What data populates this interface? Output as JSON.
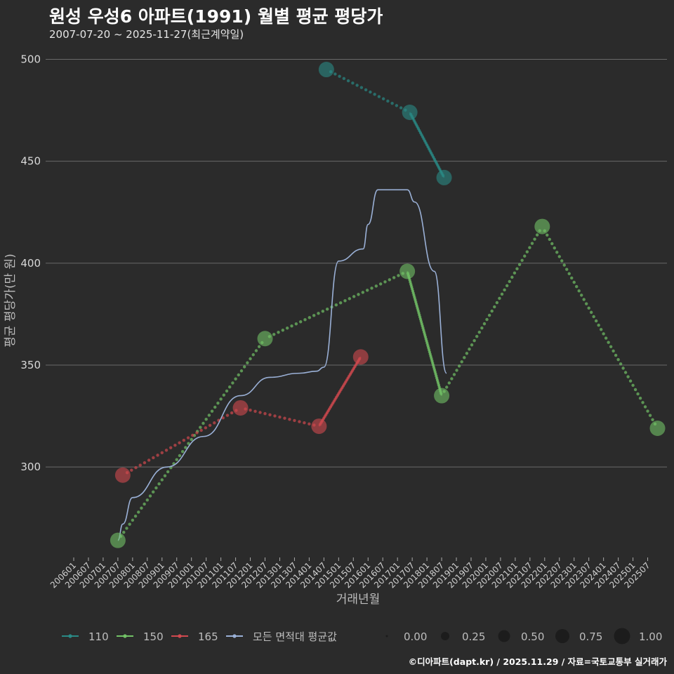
{
  "title": "원성 우성6 아파트(1991) 월별 평균 평당가",
  "subtitle": "2007-07-20 ~ 2025-11-27(최근계약일)",
  "credit": "©디아파트(dapt.kr) / 2025.11.29 / 자료=국토교통부 실거래가",
  "colors": {
    "background": "#2b2b2b",
    "grid": "#6a6a6a",
    "series_110": "#2a8a86",
    "series_150": "#72c266",
    "series_165": "#d0494f",
    "series_avg": "#9ab0d6"
  },
  "chart_data": {
    "type": "line",
    "xlabel": "거래년월",
    "ylabel": "평균 평당가(만 원)",
    "ylim": [
      257,
      505
    ],
    "yticks": [
      300,
      350,
      400,
      450,
      500
    ],
    "xlim": [
      "2006-01",
      "2025-12"
    ],
    "xticks": [
      "200601",
      "200607",
      "200701",
      "200707",
      "200801",
      "200807",
      "200901",
      "200907",
      "201001",
      "201007",
      "201101",
      "201107",
      "201201",
      "201207",
      "201301",
      "201307",
      "201401",
      "201407",
      "201501",
      "201507",
      "201601",
      "201607",
      "201701",
      "201707",
      "201801",
      "201807",
      "201901",
      "201907",
      "202001",
      "202007",
      "202101",
      "202107",
      "202201",
      "202207",
      "202301",
      "202307",
      "202401",
      "202407",
      "202501",
      "202507"
    ],
    "series": [
      {
        "name": "110",
        "color_key": "series_110",
        "points": [
          {
            "x": "2014-08",
            "y": 495
          },
          {
            "x": "2017-06",
            "y": 474
          },
          {
            "x": "2018-08",
            "y": 442
          }
        ]
      },
      {
        "name": "150",
        "color_key": "series_150",
        "points": [
          {
            "x": "2007-07",
            "y": 264
          },
          {
            "x": "2012-07",
            "y": 363
          },
          {
            "x": "2017-05",
            "y": 396
          },
          {
            "x": "2018-07",
            "y": 335
          },
          {
            "x": "2021-12",
            "y": 418
          },
          {
            "x": "2025-11",
            "y": 319
          }
        ]
      },
      {
        "name": "165",
        "color_key": "series_165",
        "points": [
          {
            "x": "2007-09",
            "y": 296
          },
          {
            "x": "2011-09",
            "y": 329
          },
          {
            "x": "2014-05",
            "y": 320
          },
          {
            "x": "2015-10",
            "y": 354
          }
        ]
      },
      {
        "name": "모든 면적대 평균값",
        "color_key": "series_avg",
        "style": "smooth",
        "points": [
          {
            "x": "2007-07",
            "y": 264
          },
          {
            "x": "2007-09",
            "y": 272
          },
          {
            "x": "2008-01",
            "y": 285
          },
          {
            "x": "2009-03",
            "y": 300
          },
          {
            "x": "2010-06",
            "y": 315
          },
          {
            "x": "2011-09",
            "y": 335
          },
          {
            "x": "2012-09",
            "y": 344
          },
          {
            "x": "2013-09",
            "y": 346
          },
          {
            "x": "2014-04",
            "y": 347
          },
          {
            "x": "2014-07",
            "y": 349
          },
          {
            "x": "2015-01",
            "y": 401
          },
          {
            "x": "2015-11",
            "y": 407
          },
          {
            "x": "2016-01",
            "y": 419
          },
          {
            "x": "2016-05",
            "y": 436
          },
          {
            "x": "2017-05",
            "y": 436
          },
          {
            "x": "2017-08",
            "y": 430
          },
          {
            "x": "2018-04",
            "y": 396
          },
          {
            "x": "2018-09",
            "y": 346
          }
        ]
      }
    ],
    "legend": {
      "position": "bottom",
      "size_title": "",
      "size_labels": [
        "0.00",
        "0.25",
        "0.50",
        "0.75",
        "1.00"
      ]
    }
  }
}
